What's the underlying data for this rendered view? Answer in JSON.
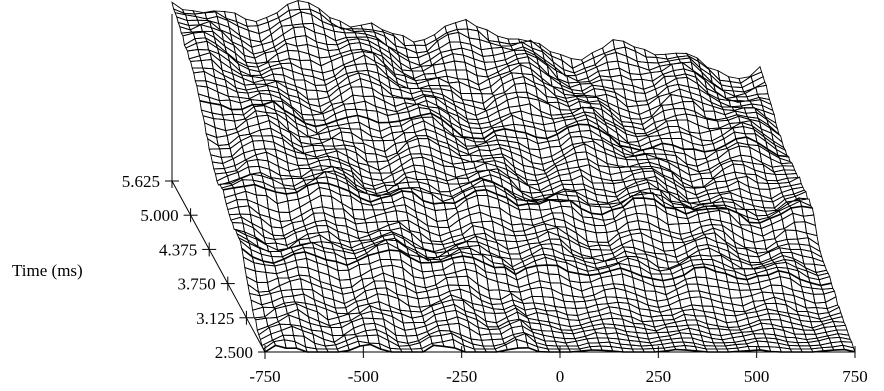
{
  "chart_data": {
    "type": "surface",
    "title": "",
    "xlabel": "",
    "ylabel": "Time (ms)",
    "zlabel": "",
    "x_ticks": [
      -750,
      -500,
      -250,
      0,
      250,
      500,
      750
    ],
    "y_ticks": [
      "2.500",
      "3.125",
      "3.750",
      "4.375",
      "5.000",
      "5.625"
    ],
    "xlim": [
      -750,
      750
    ],
    "ylim": [
      2.5,
      5.625
    ],
    "grid": false,
    "style": "black wireframe mesh, waterfall view"
  }
}
